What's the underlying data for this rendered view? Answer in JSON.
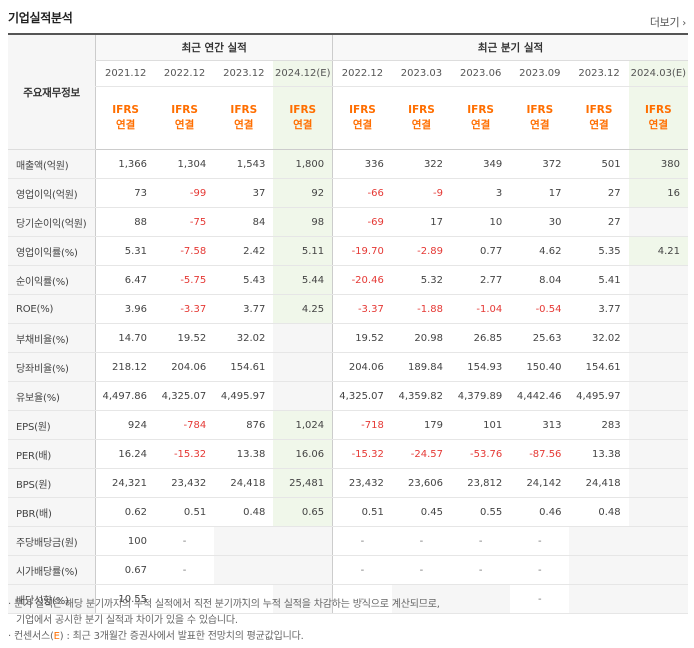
{
  "header": {
    "title": "기업실적분석",
    "more_label": "더보기"
  },
  "table": {
    "corner_label": "주요재무정보",
    "annual_group_label": "최근 연간 실적",
    "quarter_group_label": "최근 분기 실적",
    "annual_periods": [
      "2021.12",
      "2022.12",
      "2023.12",
      "2024.12(E)"
    ],
    "quarter_periods": [
      "2022.12",
      "2023.03",
      "2023.06",
      "2023.09",
      "2023.12",
      "2024.03(E)"
    ],
    "ifrs_line1": "IFRS",
    "ifrs_line2": "연결",
    "rows": [
      {
        "label": "매출액(억원)",
        "annual": [
          "1,366",
          "1,304",
          "1,543",
          "1,800"
        ],
        "quarter": [
          "336",
          "322",
          "349",
          "372",
          "501",
          "380"
        ]
      },
      {
        "label": "영업이익(억원)",
        "annual": [
          "73",
          "-99",
          "37",
          "92"
        ],
        "quarter": [
          "-66",
          "-9",
          "3",
          "17",
          "27",
          "16"
        ]
      },
      {
        "label": "당기순이익(억원)",
        "annual": [
          "88",
          "-75",
          "84",
          "98"
        ],
        "quarter": [
          "-69",
          "17",
          "10",
          "30",
          "27",
          ""
        ]
      },
      {
        "label": "영업이익률(%)",
        "annual": [
          "5.31",
          "-7.58",
          "2.42",
          "5.11"
        ],
        "quarter": [
          "-19.70",
          "-2.89",
          "0.77",
          "4.62",
          "5.35",
          "4.21"
        ]
      },
      {
        "label": "순이익률(%)",
        "annual": [
          "6.47",
          "-5.75",
          "5.43",
          "5.44"
        ],
        "quarter": [
          "-20.46",
          "5.32",
          "2.77",
          "8.04",
          "5.41",
          ""
        ]
      },
      {
        "label": "ROE(%)",
        "annual": [
          "3.96",
          "-3.37",
          "3.77",
          "4.25"
        ],
        "quarter": [
          "-3.37",
          "-1.88",
          "-1.04",
          "-0.54",
          "3.77",
          ""
        ]
      },
      {
        "label": "부채비율(%)",
        "annual": [
          "14.70",
          "19.52",
          "32.02",
          ""
        ],
        "quarter": [
          "19.52",
          "20.98",
          "26.85",
          "25.63",
          "32.02",
          ""
        ]
      },
      {
        "label": "당좌비율(%)",
        "annual": [
          "218.12",
          "204.06",
          "154.61",
          ""
        ],
        "quarter": [
          "204.06",
          "189.84",
          "154.93",
          "150.40",
          "154.61",
          ""
        ]
      },
      {
        "label": "유보율(%)",
        "annual": [
          "4,497.86",
          "4,325.07",
          "4,495.97",
          ""
        ],
        "quarter": [
          "4,325.07",
          "4,359.82",
          "4,379.89",
          "4,442.46",
          "4,495.97",
          ""
        ]
      },
      {
        "label": "EPS(원)",
        "annual": [
          "924",
          "-784",
          "876",
          "1,024"
        ],
        "quarter": [
          "-718",
          "179",
          "101",
          "313",
          "283",
          ""
        ]
      },
      {
        "label": "PER(배)",
        "annual": [
          "16.24",
          "-15.32",
          "13.38",
          "16.06"
        ],
        "quarter": [
          "-15.32",
          "-24.57",
          "-53.76",
          "-87.56",
          "13.38",
          ""
        ]
      },
      {
        "label": "BPS(원)",
        "annual": [
          "24,321",
          "23,432",
          "24,418",
          "25,481"
        ],
        "quarter": [
          "23,432",
          "23,606",
          "23,812",
          "24,142",
          "24,418",
          ""
        ]
      },
      {
        "label": "PBR(배)",
        "annual": [
          "0.62",
          "0.51",
          "0.48",
          "0.65"
        ],
        "quarter": [
          "0.51",
          "0.45",
          "0.55",
          "0.46",
          "0.48",
          ""
        ]
      },
      {
        "label": "주당배당금(원)",
        "annual": [
          "100",
          "-",
          "",
          ""
        ],
        "quarter": [
          "-",
          "-",
          "-",
          "-",
          "",
          ""
        ]
      },
      {
        "label": "시가배당률(%)",
        "annual": [
          "0.67",
          "-",
          "",
          ""
        ],
        "quarter": [
          "-",
          "-",
          "-",
          "-",
          "",
          ""
        ]
      },
      {
        "label": "배당성향(%)",
        "annual": [
          "10.55",
          "-",
          "-",
          ""
        ],
        "quarter": [
          "-",
          "",
          "",
          "-",
          "",
          ""
        ]
      }
    ]
  },
  "notes": {
    "line1": "· 분기 실적은 해당 분기까지의 누적 실적에서 직전 분기까지의 누적 실적을 차감하는 방식으로 계산되므로,",
    "line2": "기업에서 공시한 분기 실적과 차이가 있을 수 있습니다.",
    "line3_prefix": "· 컨센서스(",
    "line3_e": "E",
    "line3_suffix": ") : 최근 3개월간 증권사에서 발표한 전망치의 평균값입니다."
  },
  "colors": {
    "accent": "#ff6e00",
    "negative": "#e53935",
    "estimate_bg": "#f0f7ea"
  }
}
